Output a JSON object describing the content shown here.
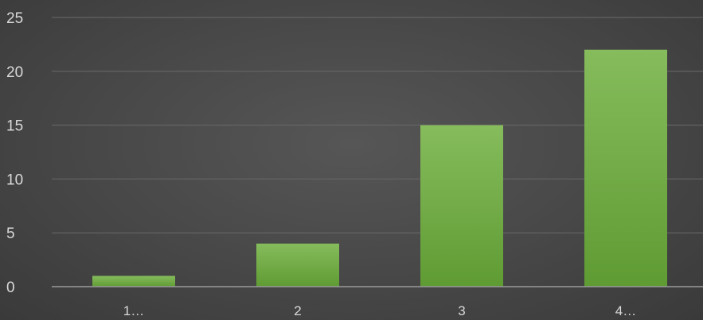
{
  "chart_data": {
    "type": "bar",
    "categories": [
      "1…",
      "2",
      "3",
      "4…"
    ],
    "values": [
      1,
      4,
      15,
      22
    ],
    "title": "",
    "xlabel": "",
    "ylabel": "",
    "ylim": [
      0,
      25
    ],
    "yticks": [
      0,
      5,
      10,
      15,
      20,
      25
    ],
    "grid": true,
    "legend": "none",
    "colors": {
      "bar_top": "#86bc5c",
      "bar_bottom": "#5f9b33",
      "background": "#4a4a4a",
      "text": "#d9d9d9",
      "gridline": "#6a6a6a"
    }
  }
}
